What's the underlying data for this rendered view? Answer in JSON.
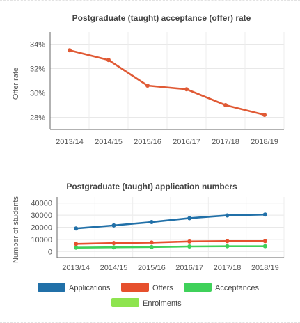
{
  "chart_data": [
    {
      "type": "line",
      "title": "Postgraduate (taught) acceptance (offer) rate",
      "xlabel": "",
      "ylabel": "Offer rate",
      "categories": [
        "2013/14",
        "2014/15",
        "2015/16",
        "2016/17",
        "2017/18",
        "2018/19"
      ],
      "series": [
        {
          "values": [
            33.5,
            32.7,
            30.6,
            30.3,
            29.0,
            28.2
          ],
          "color": "#e05a35"
        }
      ],
      "ylim": [
        27,
        35
      ],
      "yticks": [
        28,
        30,
        32,
        34
      ],
      "ytick_labels": [
        "28%",
        "30%",
        "32%",
        "34%"
      ],
      "grid": true,
      "legend": "none"
    },
    {
      "type": "line",
      "title": "Postgraduate (taught) application numbers",
      "xlabel": "",
      "ylabel": "Number of students",
      "categories": [
        "2013/14",
        "2014/15",
        "2015/16",
        "2016/17",
        "2017/18",
        "2018/19"
      ],
      "series": [
        {
          "name": "Applications",
          "values": [
            19000,
            21500,
            24300,
            27500,
            29800,
            30500
          ],
          "color": "#2170a8"
        },
        {
          "name": "Offers",
          "values": [
            6300,
            7000,
            7400,
            8300,
            8600,
            8600
          ],
          "color": "#e6502d"
        },
        {
          "name": "Acceptances",
          "values": [
            3200,
            3500,
            3700,
            4200,
            4400,
            4400
          ],
          "color": "#3fd15a"
        },
        {
          "name": "Enrolments",
          "values": [
            null,
            null,
            null,
            null,
            null,
            null
          ],
          "color": "#8ee44f"
        }
      ],
      "ylim": [
        -5000,
        45000
      ],
      "yticks": [
        0,
        10000,
        20000,
        30000,
        40000
      ],
      "ytick_labels": [
        "0",
        "10000",
        "20000",
        "30000",
        "40000"
      ],
      "grid": true,
      "legend": "bottom"
    }
  ]
}
